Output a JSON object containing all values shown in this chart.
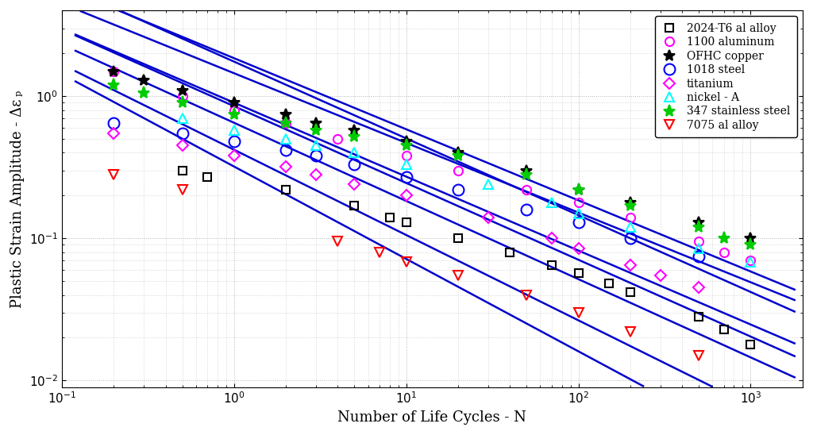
{
  "xlabel": "Number of Life Cycles - N",
  "ylabel": "Plastic Strain Amplitude - Δε ₚ",
  "xlim": [
    0.1,
    2000
  ],
  "ylim": [
    0.009,
    4.0
  ],
  "background_color": "#ffffff",
  "grid_color": "#aaaaaa",
  "line_color": "#0000cc",
  "materials": [
    {
      "name": "2024-T6 al alloy",
      "color": "black",
      "marker": "s",
      "fillstyle": "none",
      "ms": 7,
      "data_x": [
        0.5,
        0.7,
        2.0,
        5.0,
        8.0,
        10,
        20,
        40,
        70,
        100,
        150,
        200,
        500,
        700,
        1000
      ],
      "data_y": [
        0.3,
        0.27,
        0.22,
        0.17,
        0.14,
        0.13,
        0.1,
        0.08,
        0.065,
        0.057,
        0.048,
        0.042,
        0.028,
        0.023,
        0.018
      ],
      "fit_c": 0.42,
      "fit_b": -0.6
    },
    {
      "name": "1100 aluminum",
      "color": "magenta",
      "marker": "o",
      "fillstyle": "none",
      "ms": 8,
      "data_x": [
        0.2,
        0.5,
        1.0,
        2.0,
        4.0,
        10,
        20,
        50,
        100,
        200,
        500,
        700,
        1000
      ],
      "data_y": [
        1.5,
        1.0,
        0.8,
        0.65,
        0.5,
        0.38,
        0.3,
        0.22,
        0.18,
        0.14,
        0.095,
        0.08,
        0.07
      ],
      "fit_c": 1.75,
      "fit_b": -0.54
    },
    {
      "name": "OFHC copper",
      "color": "black",
      "marker": "*",
      "fillstyle": "full",
      "ms": 10,
      "data_x": [
        0.2,
        0.3,
        0.5,
        1.0,
        2.0,
        3.0,
        5.0,
        10,
        20,
        50,
        100,
        200,
        500,
        1000
      ],
      "data_y": [
        1.5,
        1.3,
        1.1,
        0.9,
        0.75,
        0.65,
        0.58,
        0.48,
        0.4,
        0.3,
        0.22,
        0.18,
        0.13,
        0.1
      ],
      "fit_c": 1.85,
      "fit_b": -0.5
    },
    {
      "name": "1018 steel",
      "color": "blue",
      "marker": "o",
      "fillstyle": "none",
      "ms": 10,
      "data_x": [
        0.2,
        0.5,
        1.0,
        2.0,
        3.0,
        5.0,
        10,
        20,
        50,
        100,
        200,
        500
      ],
      "data_y": [
        0.65,
        0.55,
        0.48,
        0.42,
        0.38,
        0.33,
        0.27,
        0.22,
        0.16,
        0.13,
        0.1,
        0.075
      ],
      "fit_c": 0.85,
      "fit_b": -0.54
    },
    {
      "name": "titanium",
      "color": "magenta",
      "marker": "D",
      "fillstyle": "none",
      "ms": 7,
      "data_x": [
        0.2,
        0.5,
        1.0,
        2.0,
        3.0,
        5.0,
        10,
        30,
        70,
        100,
        200,
        300,
        500
      ],
      "data_y": [
        0.55,
        0.45,
        0.38,
        0.32,
        0.28,
        0.24,
        0.2,
        0.14,
        0.1,
        0.085,
        0.065,
        0.055,
        0.045
      ],
      "fit_c": 0.65,
      "fit_b": -0.55
    },
    {
      "name": "nickel - A",
      "color": "cyan",
      "marker": "^",
      "fillstyle": "none",
      "ms": 9,
      "data_x": [
        0.5,
        1.0,
        2.0,
        3.0,
        5.0,
        10,
        30,
        70,
        100,
        200,
        500,
        1000
      ],
      "data_y": [
        0.7,
        0.58,
        0.5,
        0.45,
        0.4,
        0.33,
        0.24,
        0.18,
        0.15,
        0.12,
        0.085,
        0.068
      ],
      "fit_c": 0.9,
      "fit_b": -0.52
    },
    {
      "name": "347 stainless steel",
      "color": "#00cc00",
      "marker": "*",
      "fillstyle": "full",
      "ms": 11,
      "data_x": [
        0.2,
        0.3,
        0.5,
        1.0,
        2.0,
        3.0,
        5.0,
        10,
        20,
        50,
        100,
        200,
        500,
        700,
        1000
      ],
      "data_y": [
        1.2,
        1.05,
        0.9,
        0.75,
        0.65,
        0.58,
        0.52,
        0.45,
        0.38,
        0.28,
        0.22,
        0.17,
        0.12,
        0.1,
        0.09
      ],
      "fit_c": 1.45,
      "fit_b": -0.49
    },
    {
      "name": "7075 al alloy",
      "color": "red",
      "marker": "v",
      "fillstyle": "none",
      "ms": 9,
      "data_x": [
        0.2,
        0.5,
        4.0,
        7.0,
        10,
        20,
        50,
        100,
        200,
        500
      ],
      "data_y": [
        0.28,
        0.22,
        0.095,
        0.08,
        0.068,
        0.055,
        0.04,
        0.03,
        0.022,
        0.015
      ],
      "fit_c": 0.32,
      "fit_b": -0.65
    }
  ]
}
